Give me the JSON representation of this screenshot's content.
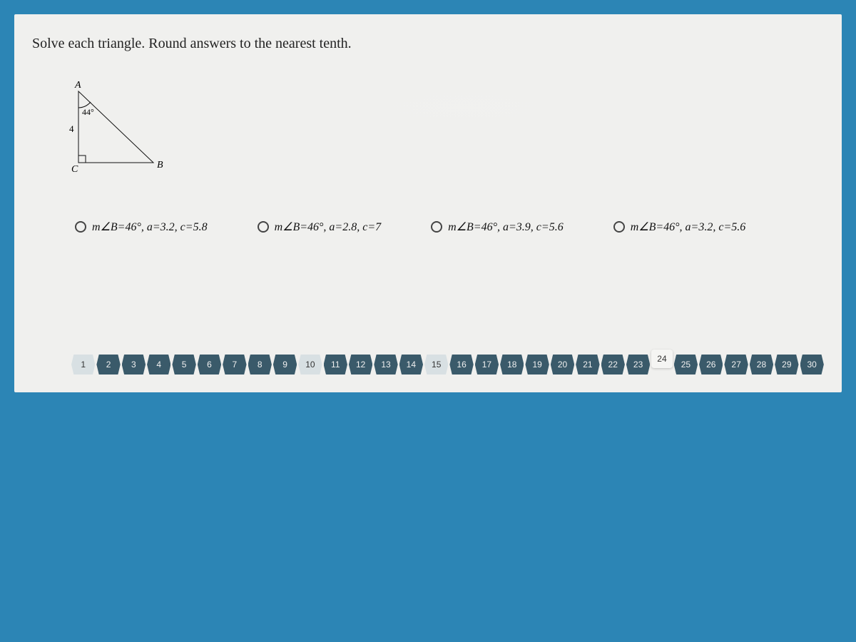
{
  "question": {
    "prompt": "Solve each triangle.  Round answers to the nearest tenth.",
    "triangle": {
      "vertex_top": "A",
      "vertex_right": "B",
      "vertex_left": "C",
      "angle_at_A": "44°",
      "side_b_label": "4",
      "right_angle_at": "C",
      "stroke": "#111111",
      "fill": "none"
    }
  },
  "options": [
    {
      "text": "m∠B=46°,  a=3.2,  c=5.8"
    },
    {
      "text": "m∠B=46°,  a=2.8,  c=7"
    },
    {
      "text": "m∠B=46°,  a=3.9,  c=5.6"
    },
    {
      "text": "m∠B=46°,  a=3.2,  c=5.6"
    }
  ],
  "navigation": {
    "total": 30,
    "current": 24,
    "style_map": {
      "dark": [
        2,
        3,
        4,
        5,
        6,
        7,
        8,
        9,
        11,
        12,
        13,
        14,
        16,
        17,
        18,
        19,
        20,
        21,
        22,
        23,
        25,
        26,
        27,
        28,
        29,
        30
      ],
      "light": [
        1,
        10,
        15
      ],
      "raised": [
        24
      ]
    },
    "colors": {
      "dark_bg": "#3a5a6a",
      "light_bg": "#d8e0e3",
      "raised_bg": "#f5f5f3",
      "panel_bg": "#f0f0ee",
      "page_bg": "#2c85b5"
    }
  }
}
